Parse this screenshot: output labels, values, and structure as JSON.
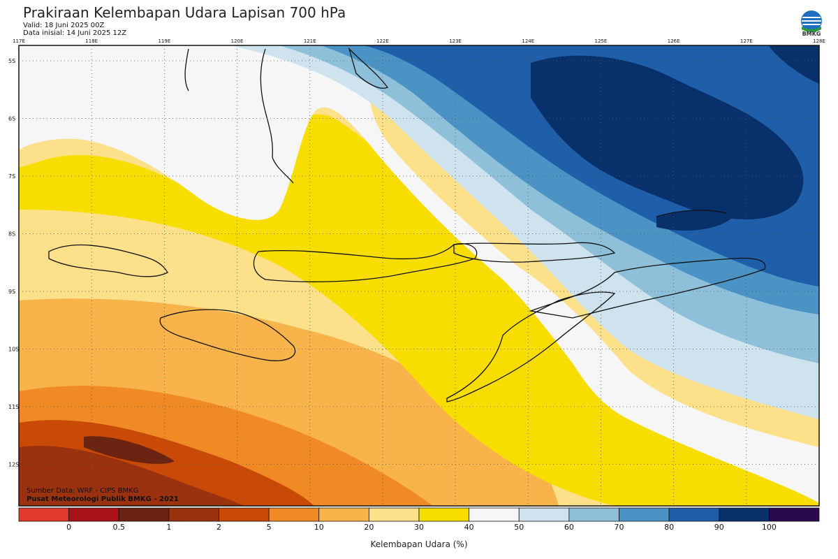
{
  "header": {
    "title": "Prakiraan Kelembapan Udara Lapisan 700 hPa",
    "valid": "Valid: 18 Juni 2025 00Z",
    "initial": "Data inisial: 14 Juni 2025 12Z"
  },
  "logo": {
    "text": "BMKG",
    "icon": "bmkg-logo-icon"
  },
  "axes": {
    "lon_labels": [
      "117E",
      "118E",
      "119E",
      "120E",
      "121E",
      "122E",
      "123E",
      "124E",
      "125E",
      "126E",
      "127E",
      "128E"
    ],
    "lat_labels": [
      "5S",
      "6S",
      "7S",
      "8S",
      "9S",
      "10S",
      "11S",
      "12S"
    ]
  },
  "source": {
    "line1": "Sumber Data: WRF - CIPS BMKG",
    "line2": "Pusat Meteorologi Publik BMKG - 2021"
  },
  "colorbar": {
    "title": "Kelembapan Udara (%)",
    "ticks": [
      "0",
      "0.5",
      "1",
      "2",
      "5",
      "10",
      "20",
      "30",
      "40",
      "50",
      "60",
      "70",
      "80",
      "90",
      "100"
    ],
    "colors": [
      "#e03a2e",
      "#a81217",
      "#6b2412",
      "#9a3210",
      "#c94a07",
      "#f08a24",
      "#f8b34a",
      "#fde08a",
      "#f8de00",
      "#f6f6f6",
      "#cfe3ef",
      "#8fc0da",
      "#4a93c4",
      "#1f5ea8",
      "#08306b",
      "#2a0a4a"
    ]
  },
  "map": {
    "fill_colors": {
      "deep_brown": "#6b2412",
      "brown": "#9a3210",
      "dark_orange": "#c94a07",
      "orange": "#f08a24",
      "light_orange": "#f8b34a",
      "pale_orange": "#fde08a",
      "yellow": "#f8de00",
      "white": "#f6f6f6",
      "pale_blue": "#cfe3ef",
      "light_blue": "#8fc0da",
      "mid_blue": "#4a93c4",
      "blue": "#1f5ea8",
      "navy": "#08306b"
    }
  }
}
